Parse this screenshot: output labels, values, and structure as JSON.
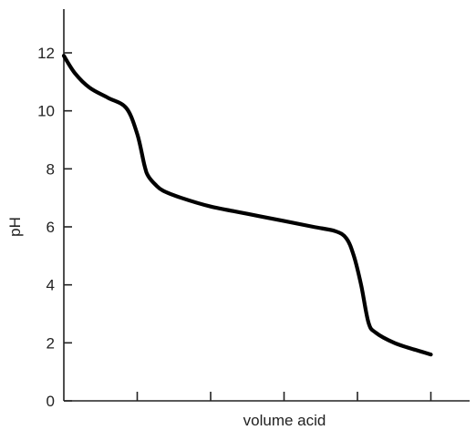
{
  "chart_data": {
    "type": "line",
    "title": "",
    "xlabel": "volume acid",
    "ylabel": "pH",
    "ylim": [
      0,
      13
    ],
    "yticks": [
      0,
      2,
      4,
      6,
      8,
      10,
      12
    ],
    "xlim": [
      0,
      5.5
    ],
    "xticks": [
      1,
      2,
      3,
      4,
      5
    ],
    "x_tick_labels_shown": false,
    "grid": false,
    "legend": "none",
    "line_color": "#000000",
    "series": [
      {
        "x": [
          0.0,
          0.15,
          0.35,
          0.6,
          0.85,
          1.0,
          1.1,
          1.15,
          1.25,
          1.35,
          1.6,
          2.0,
          2.5,
          3.0,
          3.4,
          3.7,
          3.85,
          3.95,
          4.05,
          4.15,
          4.25,
          4.5,
          4.8,
          5.0
        ],
        "y": [
          11.9,
          11.3,
          10.8,
          10.45,
          10.1,
          9.2,
          8.1,
          7.75,
          7.45,
          7.25,
          7.0,
          6.7,
          6.45,
          6.2,
          6.0,
          5.85,
          5.6,
          5.0,
          4.0,
          2.7,
          2.35,
          2.0,
          1.75,
          1.6
        ]
      }
    ]
  }
}
